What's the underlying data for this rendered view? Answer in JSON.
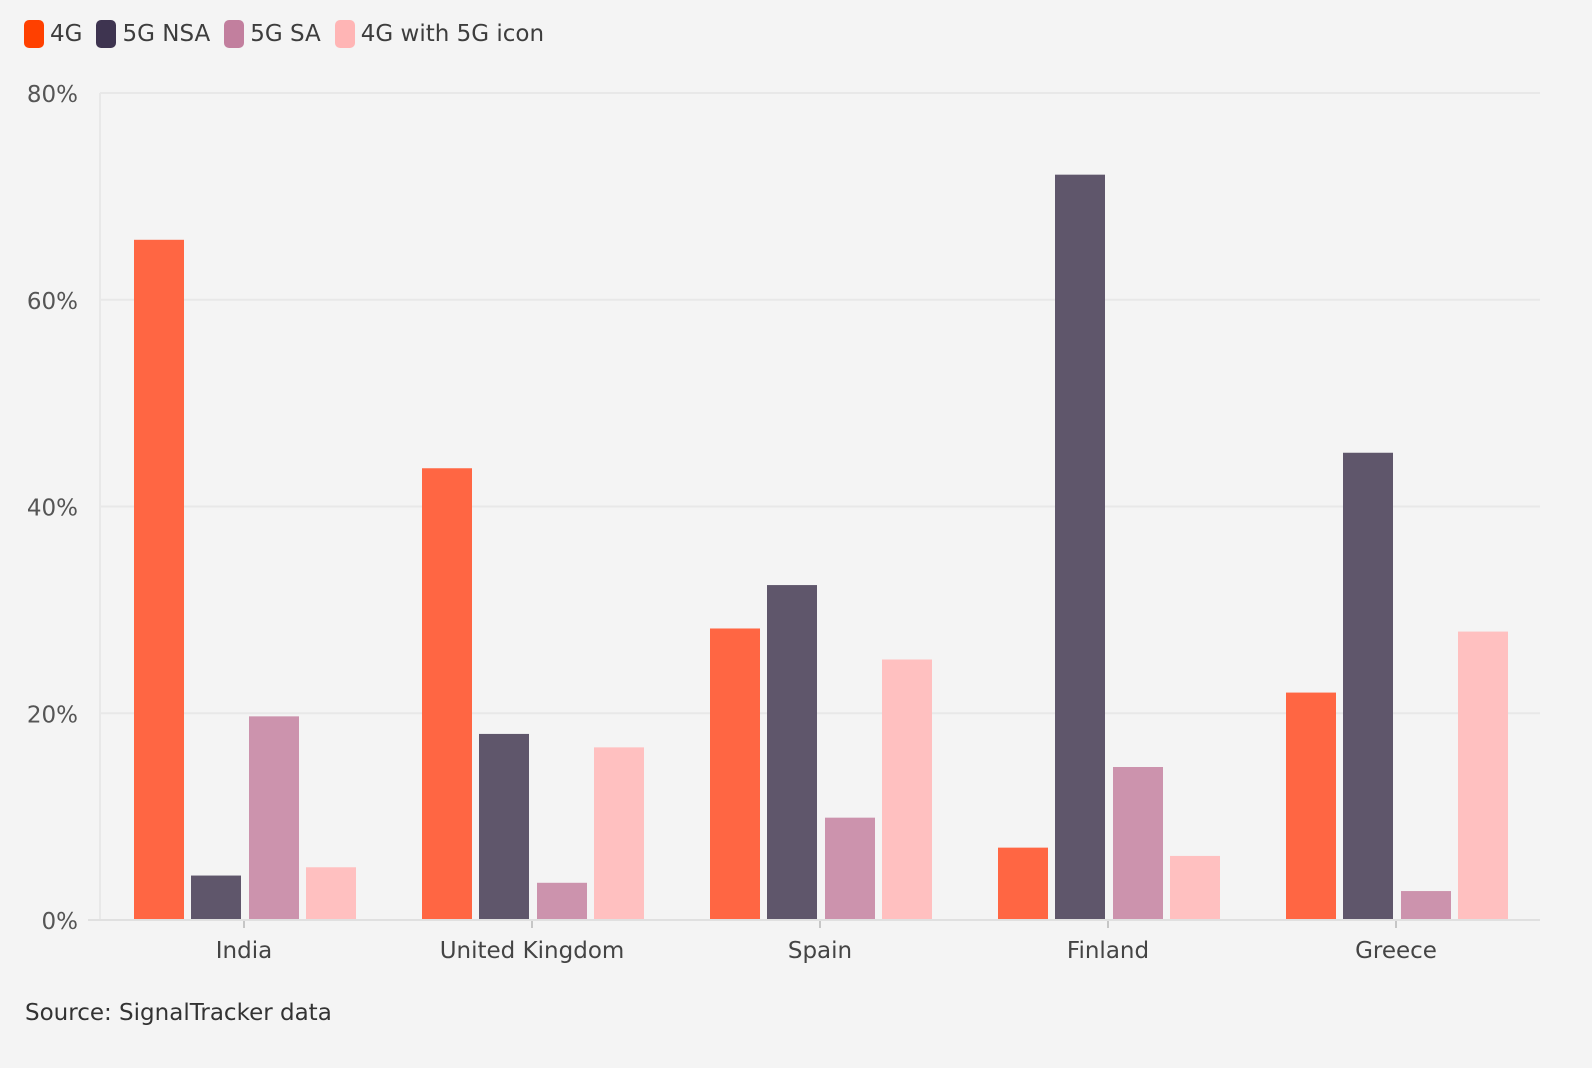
{
  "chart_data": {
    "type": "bar",
    "categories": [
      "India",
      "United Kingdom",
      "Spain",
      "Finland",
      "Greece"
    ],
    "series": [
      {
        "name": "4G",
        "color": "#ff6643",
        "legend_color": "#ff4000",
        "values": [
          65.8,
          43.7,
          28.2,
          7.0,
          22.0
        ]
      },
      {
        "name": "5G NSA",
        "color": "#5f566b",
        "legend_color": "#3e3450",
        "values": [
          4.3,
          18.0,
          32.4,
          72.1,
          45.2
        ]
      },
      {
        "name": "5G SA",
        "color": "#cc93ad",
        "legend_color": "#c27f9e",
        "values": [
          19.7,
          3.6,
          9.9,
          14.8,
          2.8
        ]
      },
      {
        "name": "4G with 5G icon",
        "color": "#ffc0c0",
        "legend_color": "#ffb5b5",
        "values": [
          5.1,
          16.7,
          25.2,
          6.2,
          27.9
        ]
      }
    ],
    "ylim": [
      0,
      80
    ],
    "yticks": [
      0,
      20,
      40,
      60,
      80
    ],
    "ytick_labels": [
      "0%",
      "20%",
      "40%",
      "60%",
      "80%"
    ],
    "grid": true,
    "legend_position": "top-left",
    "source": "Source: SignalTracker data"
  }
}
